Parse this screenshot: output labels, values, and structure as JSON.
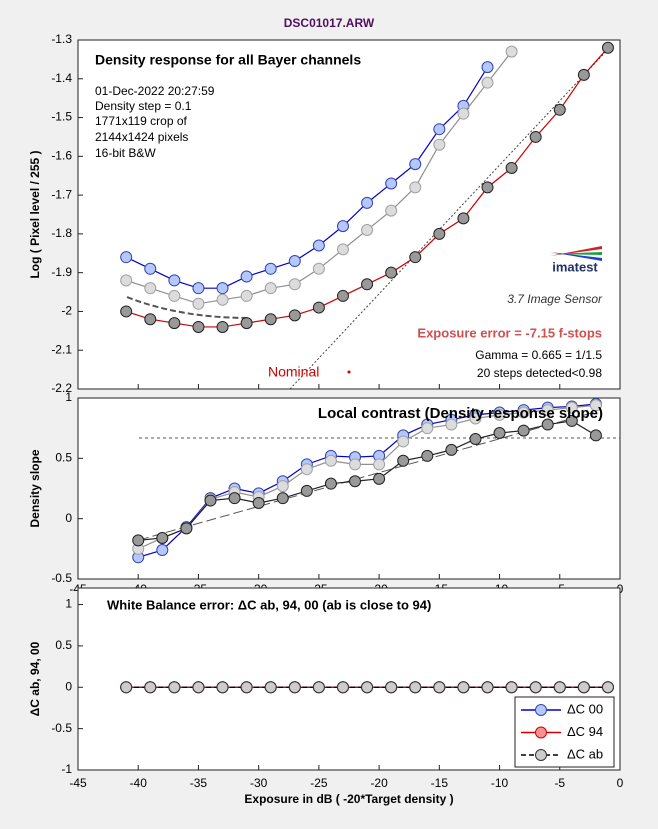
{
  "figure_title": "DSC01017.ARW",
  "chart_data": [
    {
      "type": "line",
      "title": "Density response for all Bayer channels",
      "ylabel": "Log ( Pixel level / 255 )",
      "annotations": [
        "01-Dec-2022 20:27:59",
        "Density step = 0.1",
        "1771x119 crop of",
        "2144x1424 pixels",
        "16-bit B&W",
        "imatest",
        "3.7  Image Sensor",
        "Exposure error = -7.15 f-stops",
        "Gamma = 0.665 = 1/1.5",
        "20 steps detected<0.98",
        "Nominal"
      ],
      "x": [
        -41,
        -39,
        -37,
        -35,
        -33,
        -31,
        -29,
        -27,
        -25,
        -23,
        -21,
        -19,
        -17,
        -15,
        -13,
        -11,
        -9,
        -7,
        -5,
        -3,
        -1
      ],
      "series": [
        {
          "color": "#0000cc",
          "marker_color": "#b4c8ff",
          "edge_color": "#3344aa",
          "values": [
            -1.86,
            -1.89,
            -1.92,
            -1.94,
            -1.94,
            -1.91,
            -1.89,
            -1.87,
            -1.83,
            -1.78,
            -1.72,
            -1.67,
            -1.62,
            -1.53,
            -1.47,
            -1.37,
            null,
            null,
            null,
            null,
            null
          ]
        },
        {
          "color": "#909090",
          "marker_color": "#dcdcdc",
          "edge_color": "#a0a0a0",
          "values": [
            -1.92,
            -1.94,
            -1.96,
            -1.98,
            -1.97,
            -1.96,
            -1.94,
            -1.93,
            -1.89,
            -1.84,
            -1.79,
            -1.74,
            -1.68,
            -1.57,
            -1.49,
            -1.41,
            -1.33,
            null,
            null,
            null,
            null
          ]
        },
        {
          "color": "#cc0000",
          "marker_color": "#999999",
          "edge_color": "#222222",
          "values": [
            -2.0,
            -2.02,
            -2.03,
            -2.04,
            -2.04,
            -2.03,
            -2.02,
            -2.01,
            -1.99,
            -1.96,
            -1.93,
            -1.9,
            -1.86,
            -1.8,
            -1.76,
            -1.68,
            -1.63,
            -1.55,
            -1.48,
            -1.39,
            -1.32
          ]
        }
      ],
      "xlim": [
        -45,
        0
      ],
      "ylim": [
        -2.2,
        -1.3
      ],
      "xticks": [
        -45,
        -40,
        -35,
        -30,
        -25,
        -20,
        -15,
        -10,
        -5,
        0
      ],
      "yticks": [
        -2.2,
        -2.1,
        -2,
        -1.9,
        -1.8,
        -1.7,
        -1.6,
        -1.5,
        -1.4,
        -1.3
      ]
    },
    {
      "type": "line",
      "title": "Local contrast (Density response slope)",
      "ylabel": "Density slope",
      "x": [
        -40,
        -38,
        -36,
        -34,
        -32,
        -30,
        -28,
        -26,
        -24,
        -22,
        -20,
        -18,
        -16,
        -14,
        -12,
        -10,
        -8,
        -6,
        -4,
        -2
      ],
      "series": [
        {
          "color": "#0000cc",
          "marker_color": "#b4c8ff",
          "edge_color": "#3344aa",
          "values": [
            -0.32,
            -0.26,
            -0.07,
            0.17,
            0.25,
            0.21,
            0.31,
            0.45,
            0.52,
            0.51,
            0.52,
            0.69,
            0.78,
            0.82,
            0.86,
            0.88,
            0.9,
            0.92,
            0.93,
            0.95
          ]
        },
        {
          "color": "#909090",
          "marker_color": "#dcdcdc",
          "edge_color": "#a0a0a0",
          "values": [
            -0.25,
            -0.16,
            -0.08,
            0.16,
            0.22,
            0.18,
            0.27,
            0.41,
            0.48,
            0.45,
            0.45,
            0.64,
            0.75,
            0.78,
            0.83,
            0.86,
            0.88,
            0.9,
            0.92,
            0.94
          ]
        },
        {
          "color": "#222222",
          "marker_color": "#999999",
          "edge_color": "#222222",
          "values": [
            -0.18,
            -0.16,
            -0.08,
            0.15,
            0.17,
            0.13,
            0.17,
            0.23,
            0.29,
            0.31,
            0.33,
            0.48,
            0.52,
            0.57,
            0.66,
            0.71,
            0.73,
            0.78,
            0.81,
            0.69
          ]
        }
      ],
      "xlim": [
        -45,
        0
      ],
      "ylim": [
        -0.5,
        1
      ],
      "xticks": [
        -45,
        -40,
        -35,
        -30,
        -25,
        -20,
        -15,
        -10,
        -5,
        0
      ],
      "yticks": [
        -0.5,
        0,
        0.5,
        1
      ]
    },
    {
      "type": "line",
      "title": "White Balance error:  ΔC ab, 94, 00 (ab is close to 94)",
      "ylabel": "ΔC ab, 94, 00",
      "xlabel": "Exposure in dB ( -20*Target density )",
      "x": [
        -41,
        -39,
        -37,
        -35,
        -33,
        -31,
        -29,
        -27,
        -25,
        -23,
        -21,
        -19,
        -17,
        -15,
        -13,
        -11,
        -9,
        -7,
        -5,
        -3,
        -1
      ],
      "series": [
        {
          "name": "ΔC 00",
          "color": "#0000cc",
          "marker_color": "#b4c8ff",
          "edge_color": "#3344aa",
          "linestyle": "solid",
          "values": [
            0,
            0,
            0,
            0,
            0,
            0,
            0,
            0,
            0,
            0,
            0,
            0,
            0,
            0,
            0,
            0,
            0,
            0,
            0,
            0,
            0
          ]
        },
        {
          "name": "ΔC 94",
          "color": "#cc0000",
          "marker_color": "#ff9090",
          "edge_color": "#cc0000",
          "linestyle": "solid",
          "values": [
            0,
            0,
            0,
            0,
            0,
            0,
            0,
            0,
            0,
            0,
            0,
            0,
            0,
            0,
            0,
            0,
            0,
            0,
            0,
            0,
            0
          ]
        },
        {
          "name": "ΔC ab",
          "color": "#000000",
          "marker_color": "#cccccc",
          "edge_color": "#333333",
          "linestyle": "dashed",
          "values": [
            0,
            0,
            0,
            0,
            0,
            0,
            0,
            0,
            0,
            0,
            0,
            0,
            0,
            0,
            0,
            0,
            0,
            0,
            0,
            0,
            0
          ]
        }
      ],
      "xlim": [
        -45,
        0
      ],
      "ylim": [
        -1,
        1.2
      ],
      "xticks": [
        -45,
        -40,
        -35,
        -30,
        -25,
        -20,
        -15,
        -10,
        -5,
        0
      ],
      "yticks": [
        -1,
        -0.5,
        0,
        0.5,
        1
      ],
      "legend": "lower right"
    }
  ]
}
